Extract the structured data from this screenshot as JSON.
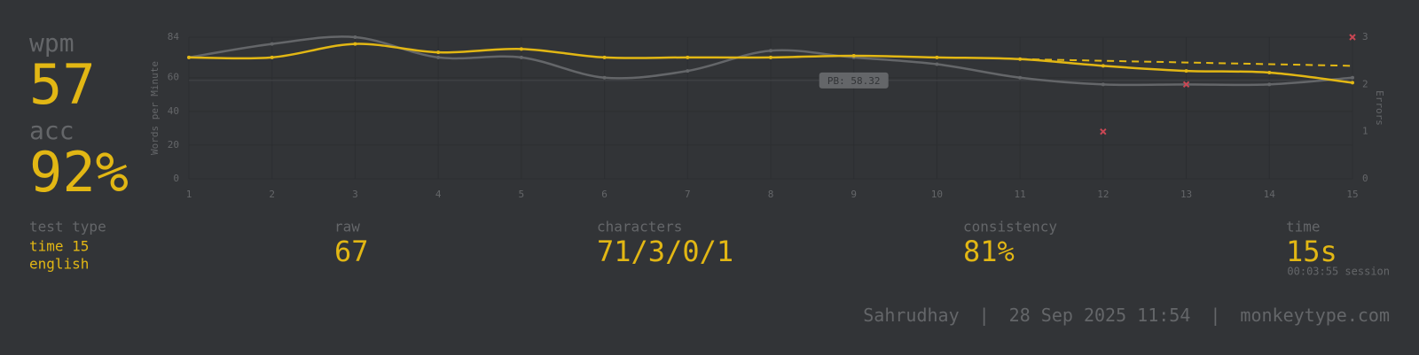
{
  "stats": {
    "wpm_label": "wpm",
    "wpm": 57,
    "acc_label": "acc",
    "acc": "92%",
    "test_type_label": "test type",
    "test_mode": "time 15",
    "language": "english",
    "raw_label": "raw",
    "raw": 67,
    "characters_label": "characters",
    "characters": "71/3/0/1",
    "consistency_label": "consistency",
    "consistency": "81%",
    "time_label": "time",
    "time": "15s",
    "session": "00:03:55 session"
  },
  "footer": {
    "user": "Sahrudhay",
    "separator": "|",
    "date": "28 Sep 2025 11:54",
    "site": "monkeytype.com"
  },
  "chart_data": {
    "type": "line",
    "ylabel": "Words per Minute",
    "y2label": "Errors",
    "x": [
      1,
      2,
      3,
      4,
      5,
      6,
      7,
      8,
      9,
      10,
      11,
      12,
      13,
      14,
      15
    ],
    "xlim": [
      1,
      15
    ],
    "xticks": [
      1,
      2,
      3,
      4,
      5,
      6,
      7,
      8,
      9,
      10,
      11,
      12,
      13,
      14,
      15
    ],
    "ylim": [
      0,
      84
    ],
    "yticks": [
      0,
      20,
      40,
      60,
      84
    ],
    "y2lim": [
      0,
      3
    ],
    "y2ticks": [
      0,
      1,
      2,
      3
    ],
    "grid": true,
    "series": [
      {
        "color": "#646669",
        "values": [
          72,
          80,
          84,
          72,
          72,
          60,
          64,
          76,
          72,
          68,
          60,
          56,
          56,
          56,
          60
        ]
      },
      {
        "color": "#e2b714",
        "values": [
          72,
          72,
          80,
          75,
          77,
          72,
          72,
          72,
          73,
          72,
          71,
          67,
          64,
          63,
          57
        ]
      },
      {
        "color": "#e2b714",
        "dashed": true,
        "values": [
          null,
          null,
          null,
          null,
          null,
          null,
          null,
          null,
          null,
          null,
          71,
          70,
          69,
          68,
          67
        ]
      },
      {
        "color": "#ca4754",
        "type": "scatter",
        "axis": "y2",
        "values": [
          null,
          null,
          null,
          null,
          null,
          null,
          null,
          null,
          null,
          null,
          null,
          1,
          2,
          null,
          3
        ]
      }
    ],
    "pb_line": {
      "value": 58.32,
      "label": "PB: 58.32"
    }
  }
}
